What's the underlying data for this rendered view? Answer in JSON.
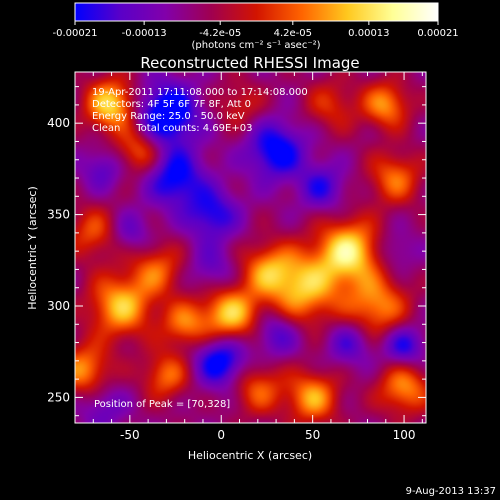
{
  "chart_data": {
    "type": "heatmap",
    "title": "Reconstructed RHESSI Image",
    "xlabel": "Heliocentric X (arcsec)",
    "ylabel": "Heliocentric Y (arcsec)",
    "xlim": [
      -80,
      112
    ],
    "ylim": [
      236,
      428
    ],
    "x_ticks": [
      -50,
      0,
      50,
      100
    ],
    "y_ticks": [
      250,
      300,
      350,
      400
    ],
    "grid": false,
    "colorbar": {
      "min": -0.00021,
      "max": 0.00021,
      "tick_values": [
        -0.00021,
        -0.00013,
        -4.2e-05,
        4.2e-05,
        0.00013,
        0.00021
      ],
      "tick_labels": [
        "-0.00021",
        "-0.00013",
        "-4.2e-05",
        "4.2e-05",
        "0.00013",
        "0.00021"
      ],
      "unit_label": "(photons cm⁻² s⁻¹ asec⁻²)",
      "colors": [
        "#0000ff",
        "#5a00c8",
        "#8200aa",
        "#a00050",
        "#d21400",
        "#ff6400",
        "#ffc81e",
        "#ffff96",
        "#ffffff"
      ]
    },
    "annotations": [
      "19-Apr-2011 17:11:08.000 to 17:14:08.000",
      "Detectors: 4F 5F 6F 7F 8F, Att 0",
      "Energy Range: 25.0 - 50.0 keV",
      "Clean     Total counts: 4.69E+03"
    ],
    "peak": {
      "label": "Position of Peak = [70,328]",
      "x": 70,
      "y": 328
    },
    "blobs": [
      {
        "x": 70,
        "y": 330,
        "a": 1.0,
        "s": 12
      },
      {
        "x": 45,
        "y": 310,
        "a": 0.85,
        "s": 14
      },
      {
        "x": 25,
        "y": 320,
        "a": 0.6,
        "s": 10
      },
      {
        "x": 85,
        "y": 300,
        "a": 0.7,
        "s": 12
      },
      {
        "x": -60,
        "y": 410,
        "a": 0.95,
        "s": 10
      },
      {
        "x": -45,
        "y": 385,
        "a": 0.6,
        "s": 9
      },
      {
        "x": -70,
        "y": 340,
        "a": 0.5,
        "s": 10
      },
      {
        "x": -55,
        "y": 300,
        "a": 0.85,
        "s": 12
      },
      {
        "x": -35,
        "y": 320,
        "a": 0.55,
        "s": 10
      },
      {
        "x": 5,
        "y": 295,
        "a": 0.9,
        "s": 11
      },
      {
        "x": -20,
        "y": 290,
        "a": 0.6,
        "s": 9
      },
      {
        "x": -75,
        "y": 265,
        "a": 0.7,
        "s": 10
      },
      {
        "x": -30,
        "y": 262,
        "a": 0.6,
        "s": 9
      },
      {
        "x": 20,
        "y": 255,
        "a": 0.55,
        "s": 10
      },
      {
        "x": 50,
        "y": 250,
        "a": 0.75,
        "s": 10
      },
      {
        "x": 100,
        "y": 255,
        "a": 0.7,
        "s": 10
      },
      {
        "x": 95,
        "y": 370,
        "a": 0.6,
        "s": 10
      },
      {
        "x": 60,
        "y": 410,
        "a": 0.4,
        "s": 10
      },
      {
        "x": 90,
        "y": 410,
        "a": 0.7,
        "s": 9
      },
      {
        "x": 10,
        "y": 410,
        "a": 0.35,
        "s": 9
      },
      {
        "x": -30,
        "y": 405,
        "a": -0.9,
        "s": 12
      },
      {
        "x": -25,
        "y": 370,
        "a": -0.7,
        "s": 11
      },
      {
        "x": -5,
        "y": 350,
        "a": -0.6,
        "s": 10
      },
      {
        "x": 30,
        "y": 385,
        "a": -0.75,
        "s": 11
      },
      {
        "x": 55,
        "y": 365,
        "a": -0.5,
        "s": 9
      },
      {
        "x": -65,
        "y": 375,
        "a": -0.4,
        "s": 8
      },
      {
        "x": 0,
        "y": 270,
        "a": -0.8,
        "s": 10
      },
      {
        "x": 30,
        "y": 285,
        "a": -0.5,
        "s": 9
      },
      {
        "x": 100,
        "y": 278,
        "a": -0.6,
        "s": 8
      },
      {
        "x": 70,
        "y": 280,
        "a": -0.45,
        "s": 9
      },
      {
        "x": -50,
        "y": 340,
        "a": -0.35,
        "s": 8
      },
      {
        "x": -5,
        "y": 320,
        "a": -0.35,
        "s": 9
      },
      {
        "x": 95,
        "y": 330,
        "a": -0.3,
        "s": 8
      },
      {
        "x": -65,
        "y": 245,
        "a": -0.35,
        "s": 9
      }
    ]
  },
  "footer": {
    "date_stamp": "9-Aug-2013 13:37"
  }
}
